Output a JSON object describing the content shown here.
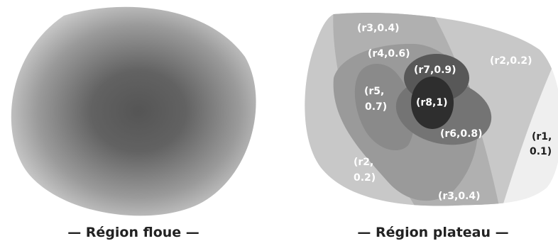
{
  "captions": {
    "fuzzy": "— Région floue —",
    "plateau": "— Région plateau —"
  },
  "regions": {
    "r1": {
      "line1": "(r1,",
      "line2": "0.1)"
    },
    "r2_top": "(r2,0.2)",
    "r2_bottom": {
      "line1": "(r2,",
      "line2": "0.2)"
    },
    "r3_top": "(r3,0.4)",
    "r3_bottom": "(r3,0.4)",
    "r4": "(r4,0.6)",
    "r5": {
      "line1": "(r5,",
      "line2": "0.7)"
    },
    "r6": "(r6,0.8)",
    "r7": "(r7,0.9)",
    "r8": "(r8,1)"
  },
  "colors": {
    "r1": "#efefef",
    "r2": "#c8c8c8",
    "r3": "#b0b0b0",
    "r4": "#9a9a9a",
    "r5": "#8a8a8a",
    "r6": "#747474",
    "r7": "#585858",
    "r8": "#2e2e2e",
    "fuzzy_center": "#555555",
    "fuzzy_edge": "#c8c8c8"
  }
}
